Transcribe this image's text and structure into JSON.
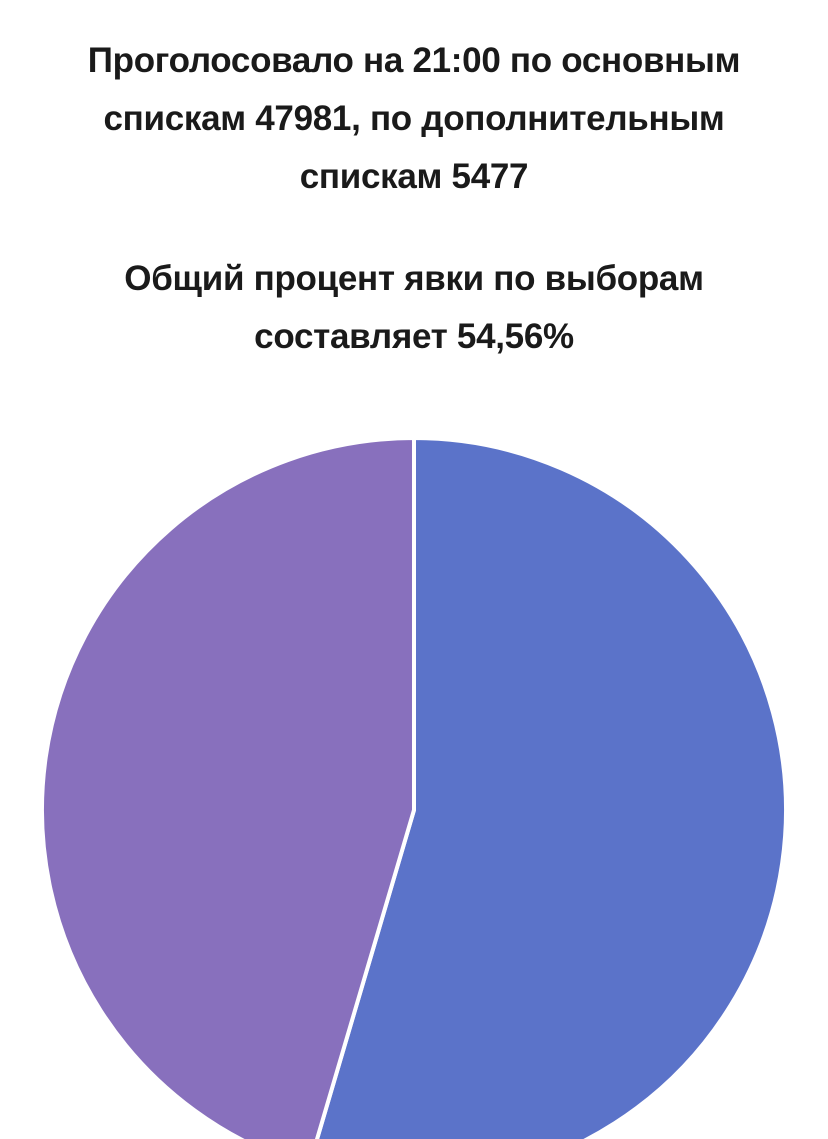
{
  "header": {
    "line1": "Проголосовало на 21:00 по основным спискам 47981, по дополнительным спискам 5477",
    "line2": "Общий процент явки по выборам составляет 54,56%"
  },
  "chart_data": {
    "type": "pie",
    "title": "",
    "slices": [
      {
        "value": 54.56,
        "color": "#5b73c9"
      },
      {
        "value": 45.44,
        "color": "#8870bd"
      }
    ],
    "start_angle_deg": 0,
    "direction": "clockwise",
    "separator_color": "#ffffff",
    "legend": "none",
    "data_labels": "none"
  }
}
